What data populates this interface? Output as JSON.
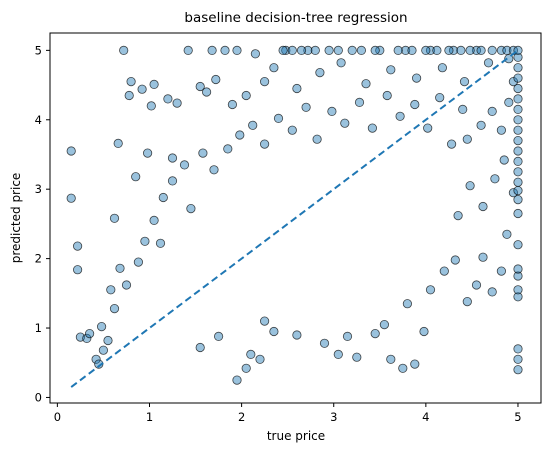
{
  "chart_data": {
    "type": "scatter",
    "title": "baseline decision-tree regression",
    "xlabel": "true price",
    "ylabel": "predicted price",
    "xlim": [
      -0.08,
      5.25
    ],
    "ylim": [
      -0.08,
      5.25
    ],
    "xticks": [
      "0",
      "1",
      "2",
      "3",
      "4",
      "5"
    ],
    "yticks": [
      "0",
      "1",
      "2",
      "3",
      "4",
      "5"
    ],
    "grid": false,
    "legend": "none",
    "colors": {
      "marker_fill": "#1f77b4",
      "marker_edge": "#000000",
      "marker_alpha": 0.45,
      "reference_line": "#1f77b4"
    },
    "reference_line": {
      "style": "dashed",
      "from": [
        0.15,
        0.15
      ],
      "to": [
        5.0,
        5.0
      ]
    },
    "series": [
      {
        "points": [
          [
            0.15,
            3.55
          ],
          [
            0.15,
            2.87
          ],
          [
            0.22,
            2.18
          ],
          [
            0.22,
            1.84
          ],
          [
            0.25,
            0.87
          ],
          [
            0.32,
            0.85
          ],
          [
            0.35,
            0.92
          ],
          [
            0.42,
            0.55
          ],
          [
            0.45,
            0.48
          ],
          [
            0.5,
            0.68
          ],
          [
            0.55,
            0.82
          ],
          [
            0.58,
            1.55
          ],
          [
            0.62,
            2.58
          ],
          [
            0.68,
            1.86
          ],
          [
            0.66,
            3.66
          ],
          [
            0.72,
            5.0
          ],
          [
            0.78,
            4.35
          ],
          [
            0.8,
            4.55
          ],
          [
            0.85,
            3.18
          ],
          [
            0.92,
            4.44
          ],
          [
            0.98,
            3.52
          ],
          [
            1.02,
            4.2
          ],
          [
            1.05,
            4.51
          ],
          [
            1.12,
            2.22
          ],
          [
            1.2,
            4.3
          ],
          [
            1.25,
            3.45
          ],
          [
            1.3,
            4.24
          ],
          [
            1.42,
            5.0
          ],
          [
            1.55,
            4.48
          ],
          [
            1.62,
            4.4
          ],
          [
            1.68,
            5.0
          ],
          [
            1.72,
            4.58
          ],
          [
            1.82,
            5.0
          ],
          [
            1.9,
            4.22
          ],
          [
            1.95,
            5.0
          ],
          [
            2.05,
            4.35
          ],
          [
            2.15,
            4.95
          ],
          [
            2.25,
            4.55
          ],
          [
            2.35,
            4.75
          ],
          [
            2.48,
            5.0
          ],
          [
            2.6,
            4.45
          ],
          [
            2.72,
            5.0
          ],
          [
            2.85,
            4.68
          ],
          [
            2.95,
            5.0
          ],
          [
            3.08,
            4.82
          ],
          [
            3.2,
            5.0
          ],
          [
            3.35,
            4.52
          ],
          [
            3.5,
            5.0
          ],
          [
            3.62,
            4.72
          ],
          [
            3.78,
            5.0
          ],
          [
            3.9,
            4.6
          ],
          [
            4.05,
            5.0
          ],
          [
            4.18,
            4.75
          ],
          [
            4.3,
            5.0
          ],
          [
            4.42,
            4.55
          ],
          [
            4.55,
            5.0
          ],
          [
            4.68,
            4.82
          ],
          [
            4.82,
            5.0
          ],
          [
            4.9,
            4.88
          ],
          [
            2.45,
            5.0
          ],
          [
            2.55,
            5.0
          ],
          [
            2.65,
            5.0
          ],
          [
            2.8,
            5.0
          ],
          [
            3.05,
            5.0
          ],
          [
            3.3,
            5.0
          ],
          [
            3.45,
            5.0
          ],
          [
            3.7,
            5.0
          ],
          [
            3.85,
            5.0
          ],
          [
            4.0,
            5.0
          ],
          [
            4.12,
            5.0
          ],
          [
            4.25,
            5.0
          ],
          [
            4.38,
            5.0
          ],
          [
            4.48,
            5.0
          ],
          [
            4.6,
            5.0
          ],
          [
            4.72,
            5.0
          ],
          [
            4.88,
            5.0
          ],
          [
            4.95,
            5.0
          ],
          [
            1.55,
            0.72
          ],
          [
            1.75,
            0.88
          ],
          [
            2.1,
            0.62
          ],
          [
            2.2,
            0.55
          ],
          [
            2.35,
            0.95
          ],
          [
            2.6,
            0.9
          ],
          [
            2.9,
            0.78
          ],
          [
            3.05,
            0.62
          ],
          [
            3.15,
            0.88
          ],
          [
            3.25,
            0.58
          ],
          [
            3.45,
            0.92
          ],
          [
            3.62,
            0.55
          ],
          [
            3.75,
            0.42
          ],
          [
            3.88,
            0.48
          ],
          [
            3.98,
            0.95
          ],
          [
            1.95,
            0.25
          ],
          [
            2.05,
            0.42
          ],
          [
            2.25,
            1.1
          ],
          [
            3.55,
            1.05
          ],
          [
            3.8,
            1.35
          ],
          [
            4.05,
            1.55
          ],
          [
            4.2,
            1.82
          ],
          [
            4.32,
            1.98
          ],
          [
            4.45,
            1.38
          ],
          [
            4.55,
            1.62
          ],
          [
            4.62,
            2.02
          ],
          [
            4.72,
            1.52
          ],
          [
            4.82,
            1.82
          ],
          [
            4.88,
            2.35
          ],
          [
            4.95,
            2.95
          ],
          [
            4.35,
            2.62
          ],
          [
            4.48,
            3.05
          ],
          [
            4.62,
            2.75
          ],
          [
            4.75,
            3.15
          ],
          [
            4.85,
            3.42
          ],
          [
            4.45,
            3.72
          ],
          [
            4.6,
            3.92
          ],
          [
            4.72,
            4.12
          ],
          [
            4.82,
            3.85
          ],
          [
            4.9,
            4.25
          ],
          [
            4.95,
            4.55
          ],
          [
            5.0,
            0.4
          ],
          [
            5.0,
            0.55
          ],
          [
            5.0,
            0.7
          ],
          [
            5.0,
            1.45
          ],
          [
            5.0,
            1.55
          ],
          [
            5.0,
            1.75
          ],
          [
            5.0,
            1.85
          ],
          [
            5.0,
            2.2
          ],
          [
            5.0,
            2.65
          ],
          [
            5.0,
            2.85
          ],
          [
            5.0,
            2.98
          ],
          [
            5.0,
            3.1
          ],
          [
            5.0,
            3.25
          ],
          [
            5.0,
            3.4
          ],
          [
            5.0,
            3.55
          ],
          [
            5.0,
            3.7
          ],
          [
            5.0,
            3.85
          ],
          [
            5.0,
            4.0
          ],
          [
            5.0,
            4.15
          ],
          [
            5.0,
            4.3
          ],
          [
            5.0,
            4.45
          ],
          [
            5.0,
            4.6
          ],
          [
            5.0,
            4.75
          ],
          [
            5.0,
            4.9
          ],
          [
            5.0,
            5.0
          ],
          [
            0.48,
            1.02
          ],
          [
            0.62,
            1.28
          ],
          [
            0.75,
            1.62
          ],
          [
            0.88,
            1.95
          ],
          [
            0.95,
            2.25
          ],
          [
            1.05,
            2.55
          ],
          [
            1.15,
            2.88
          ],
          [
            1.25,
            3.12
          ],
          [
            1.38,
            3.35
          ],
          [
            1.45,
            2.72
          ],
          [
            1.58,
            3.52
          ],
          [
            1.7,
            3.28
          ],
          [
            1.85,
            3.58
          ],
          [
            1.98,
            3.78
          ],
          [
            2.12,
            3.92
          ],
          [
            2.25,
            3.65
          ],
          [
            2.4,
            4.02
          ],
          [
            2.55,
            3.85
          ],
          [
            2.7,
            4.18
          ],
          [
            2.82,
            3.72
          ],
          [
            2.98,
            4.12
          ],
          [
            3.12,
            3.95
          ],
          [
            3.28,
            4.25
          ],
          [
            3.42,
            3.88
          ],
          [
            3.58,
            4.35
          ],
          [
            3.72,
            4.05
          ],
          [
            3.88,
            4.22
          ],
          [
            4.02,
            3.88
          ],
          [
            4.15,
            4.32
          ],
          [
            4.28,
            3.65
          ],
          [
            4.4,
            4.15
          ]
        ]
      }
    ]
  }
}
